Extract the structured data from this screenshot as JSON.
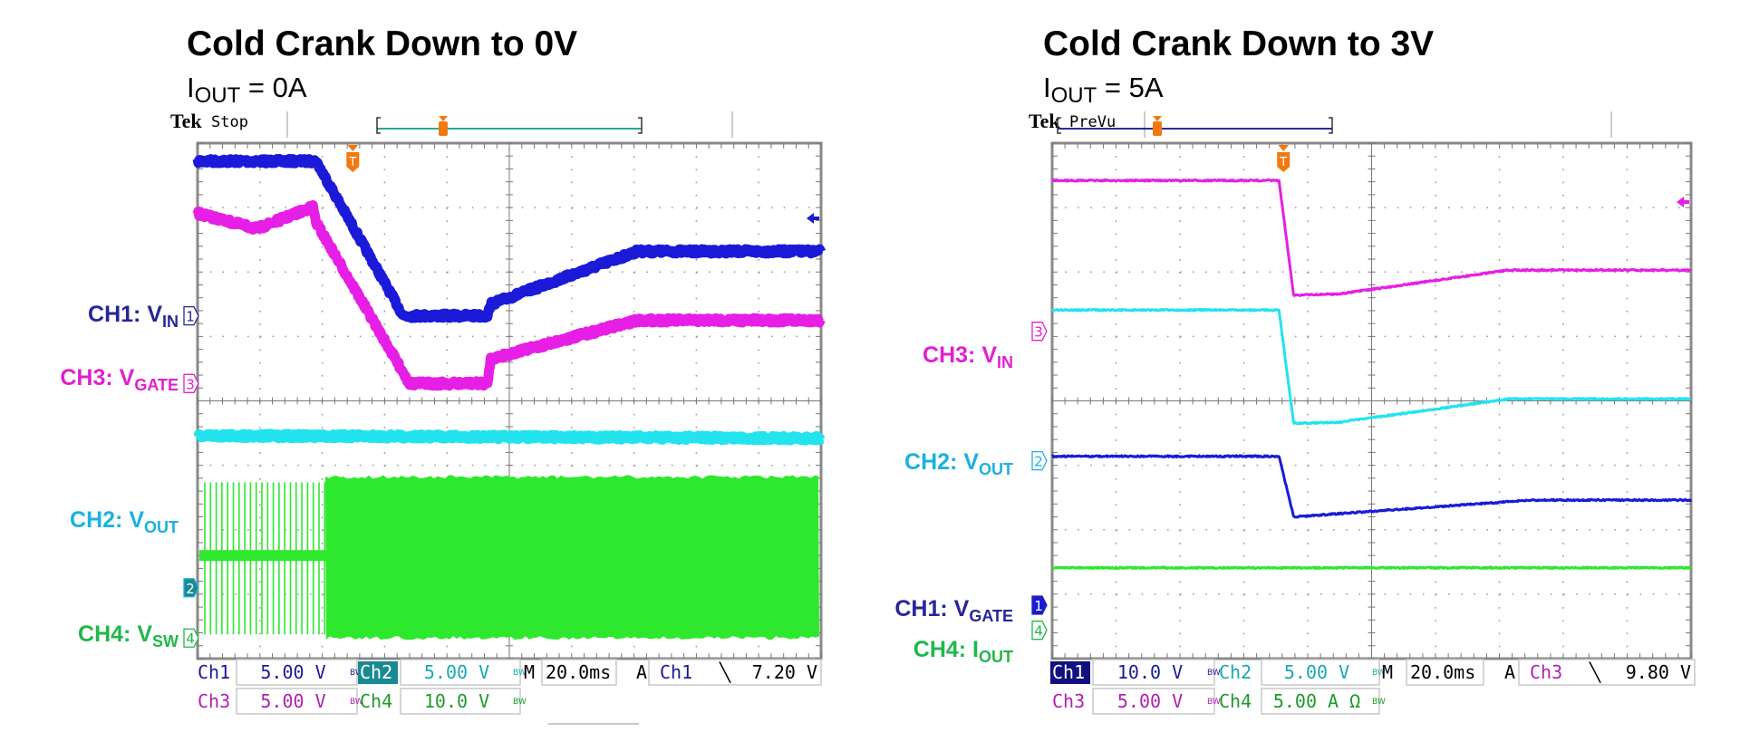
{
  "colors": {
    "ch1": "#1a1ad8",
    "ch2": "#22e3ee",
    "ch3": "#e61ee6",
    "ch4": "#2ee82e",
    "label_ch1": "#26269a",
    "label_ch2": "#1ab2e0",
    "label_ch3": "#e020d0",
    "label_ch4": "#1fb84a",
    "trigger": "#f07a10",
    "grid": "#9a9a9a"
  },
  "chart_data": [
    {
      "type": "line",
      "title": "Cold Crank Down to 0V",
      "subtitle": {
        "main": "I",
        "sub": "OUT",
        "rest": " = 0A"
      },
      "instrument": {
        "brand": "Tek",
        "mode": "Stop"
      },
      "grid": true,
      "x_unit": "ms",
      "xlim": [
        0,
        200
      ],
      "channel_labels": [
        {
          "id": "ch1",
          "name": "CH1: V",
          "sub": "IN",
          "marker": "1"
        },
        {
          "id": "ch3",
          "name": "CH3: V",
          "sub": "GATE",
          "marker": "3"
        },
        {
          "id": "ch2",
          "name": "CH2: V",
          "sub": "OUT",
          "marker": "2"
        },
        {
          "id": "ch4",
          "name": "CH4: V",
          "sub": "SW",
          "marker": "4"
        }
      ],
      "series": [
        {
          "name": "CH1: VIN",
          "channel": "ch1",
          "unit": "V",
          "points": [
            [
              0,
              12
            ],
            [
              38,
              12
            ],
            [
              66,
              0
            ],
            [
              93,
              0
            ],
            [
              94,
              0.9
            ],
            [
              141,
              5
            ],
            [
              200,
              5
            ]
          ]
        },
        {
          "name": "CH3: VGATE",
          "channel": "ch3",
          "unit": "V",
          "points": [
            [
              0,
              13.2
            ],
            [
              19,
              12
            ],
            [
              37,
              13.7
            ],
            [
              38,
              12.5
            ],
            [
              68,
              0
            ],
            [
              93,
              0
            ],
            [
              94,
              1.9
            ],
            [
              141,
              4.9
            ],
            [
              200,
              4.9
            ]
          ]
        },
        {
          "name": "CH2: VOUT",
          "channel": "ch2",
          "unit": "V",
          "points": [
            [
              0,
              11.8
            ],
            [
              200,
              11.6
            ]
          ]
        },
        {
          "name": "CH4: VSW",
          "channel": "ch4",
          "unit": "V",
          "switching": {
            "low": 0,
            "high": 25,
            "mid": 12.8,
            "burst_until_ms": 41
          }
        }
      ],
      "readouts": {
        "row1": [
          {
            "ch": "Ch1",
            "val": "5.00 V",
            "color": "ch1"
          },
          {
            "ch": "Ch2",
            "val": "5.00 V",
            "color": "ch2",
            "selected": true
          }
        ],
        "row2": [
          {
            "ch": "Ch3",
            "val": "5.00 V",
            "color": "ch3"
          },
          {
            "ch": "Ch4",
            "val": "10.0 V",
            "color": "ch4"
          }
        ],
        "bw": "BW",
        "timebase_label": "M",
        "timebase": "20.0ms",
        "acq": "A",
        "trigger_source": "Ch1",
        "trigger_slope": "╲",
        "trigger_level": "7.20 V"
      },
      "trigger_marker": "T"
    },
    {
      "type": "line",
      "title": "Cold Crank Down to 3V",
      "subtitle": {
        "main": "I",
        "sub": "OUT",
        "rest": " = 5A"
      },
      "instrument": {
        "brand": "Tek",
        "mode": "PreVu"
      },
      "grid": true,
      "x_unit": "ms",
      "xlim": [
        0,
        200
      ],
      "channel_labels": [
        {
          "id": "ch3",
          "name": "CH3: V",
          "sub": "IN",
          "marker": "3"
        },
        {
          "id": "ch2",
          "name": "CH2: V",
          "sub": "OUT",
          "marker": "2"
        },
        {
          "id": "ch1",
          "name": "CH1: V",
          "sub": "GATE",
          "marker": "1"
        },
        {
          "id": "ch4",
          "name": "CH4: I",
          "sub": "OUT",
          "marker": "4"
        }
      ],
      "series": [
        {
          "name": "CH3: VIN",
          "channel": "ch3",
          "unit": "V",
          "points": [
            [
              0,
              11.7
            ],
            [
              71,
              11.7
            ],
            [
              75.6,
              2.8
            ],
            [
              90,
              2.9
            ],
            [
              143,
              4.75
            ],
            [
              200,
              4.75
            ]
          ]
        },
        {
          "name": "CH2: VOUT",
          "channel": "ch2",
          "unit": "V",
          "points": [
            [
              0,
              11.7
            ],
            [
              71,
              11.7
            ],
            [
              75.6,
              2.9
            ],
            [
              90,
              3.0
            ],
            [
              143,
              4.8
            ],
            [
              200,
              4.8
            ]
          ]
        },
        {
          "name": "CH1: VGATE",
          "channel": "ch1",
          "unit": "V",
          "points": [
            [
              0,
              23.1
            ],
            [
              71,
              23.1
            ],
            [
              75.6,
              13.7
            ],
            [
              90,
              14.2
            ],
            [
              150,
              16.3
            ],
            [
              200,
              16.3
            ]
          ]
        },
        {
          "name": "CH4: IOUT",
          "channel": "ch4",
          "unit": "A",
          "points": [
            [
              0,
              4.85
            ],
            [
              200,
              4.85
            ]
          ]
        }
      ],
      "readouts": {
        "row1": [
          {
            "ch": "Ch1",
            "val": "10.0 V",
            "color": "ch1",
            "selected": true
          },
          {
            "ch": "Ch2",
            "val": "5.00 V",
            "color": "ch2"
          }
        ],
        "row2": [
          {
            "ch": "Ch3",
            "val": "5.00 V",
            "color": "ch3"
          },
          {
            "ch": "Ch4",
            "val": "5.00 A Ω",
            "color": "ch4"
          }
        ],
        "bw": "BW",
        "timebase_label": "M",
        "timebase": "20.0ms",
        "acq": "A",
        "trigger_source": "Ch3",
        "trigger_slope": "╲",
        "trigger_level": "9.80 V"
      },
      "trigger_marker": "T"
    }
  ]
}
